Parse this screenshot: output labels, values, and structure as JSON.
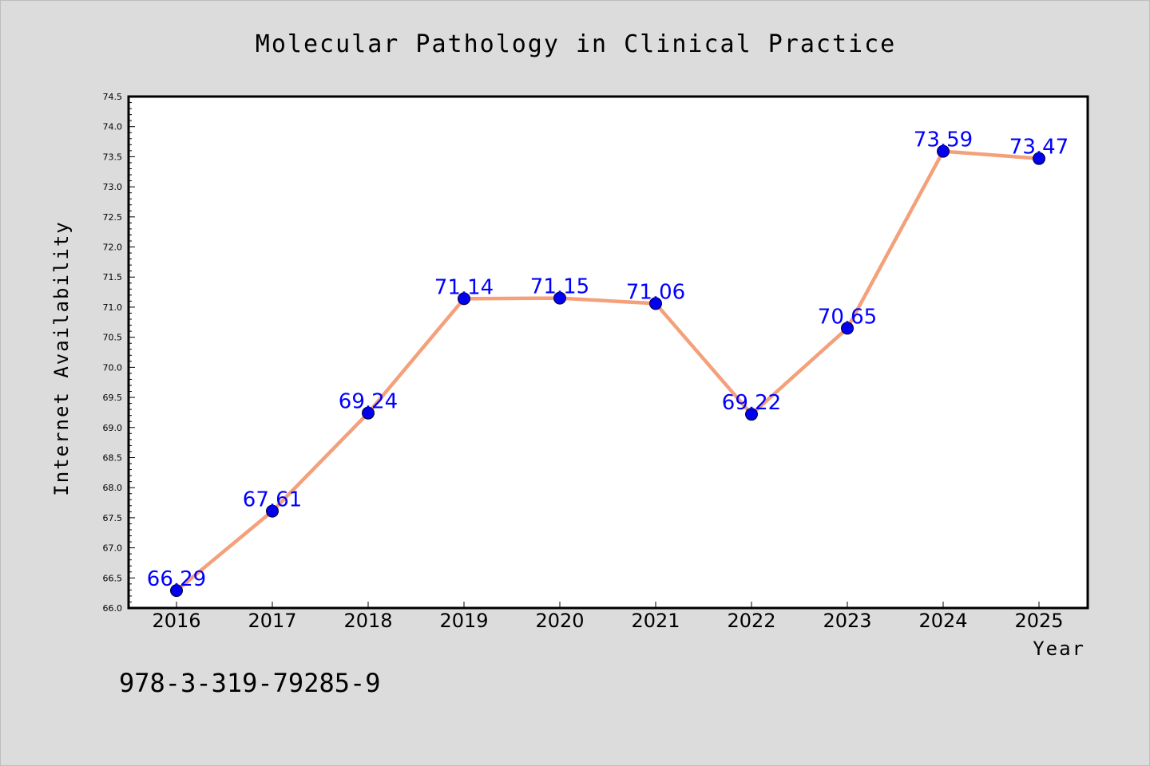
{
  "chart_data": {
    "type": "line",
    "title": "Molecular Pathology in Clinical Practice",
    "xlabel": "Year",
    "ylabel": "Internet Availability",
    "x": [
      "2016",
      "2017",
      "2018",
      "2019",
      "2020",
      "2021",
      "2022",
      "2023",
      "2024",
      "2025"
    ],
    "values": [
      66.29,
      67.61,
      69.24,
      71.14,
      71.15,
      71.06,
      69.22,
      70.65,
      73.59,
      73.47
    ],
    "data_labels": [
      "66.29",
      "67.61",
      "69.24",
      "71.14",
      "71.15",
      "71.06",
      "69.22",
      "70.65",
      "73.59",
      "73.47"
    ],
    "ylim": [
      66.0,
      74.5
    ],
    "y_ticks": [
      "66.0",
      "66.5",
      "67.0",
      "67.5",
      "68.0",
      "68.5",
      "69.0",
      "69.5",
      "70.0",
      "70.5",
      "71.0",
      "71.5",
      "72.0",
      "72.5",
      "73.0",
      "73.5",
      "74.0",
      "74.5"
    ],
    "grid": false,
    "line_color": "#f4a07a",
    "marker_color": "#0000ee",
    "label_color": "#0000ff",
    "background_color": "#dcdcdc",
    "plot_background_color": "#ffffff"
  },
  "footer": {
    "isbn": "978-3-319-79285-9"
  }
}
